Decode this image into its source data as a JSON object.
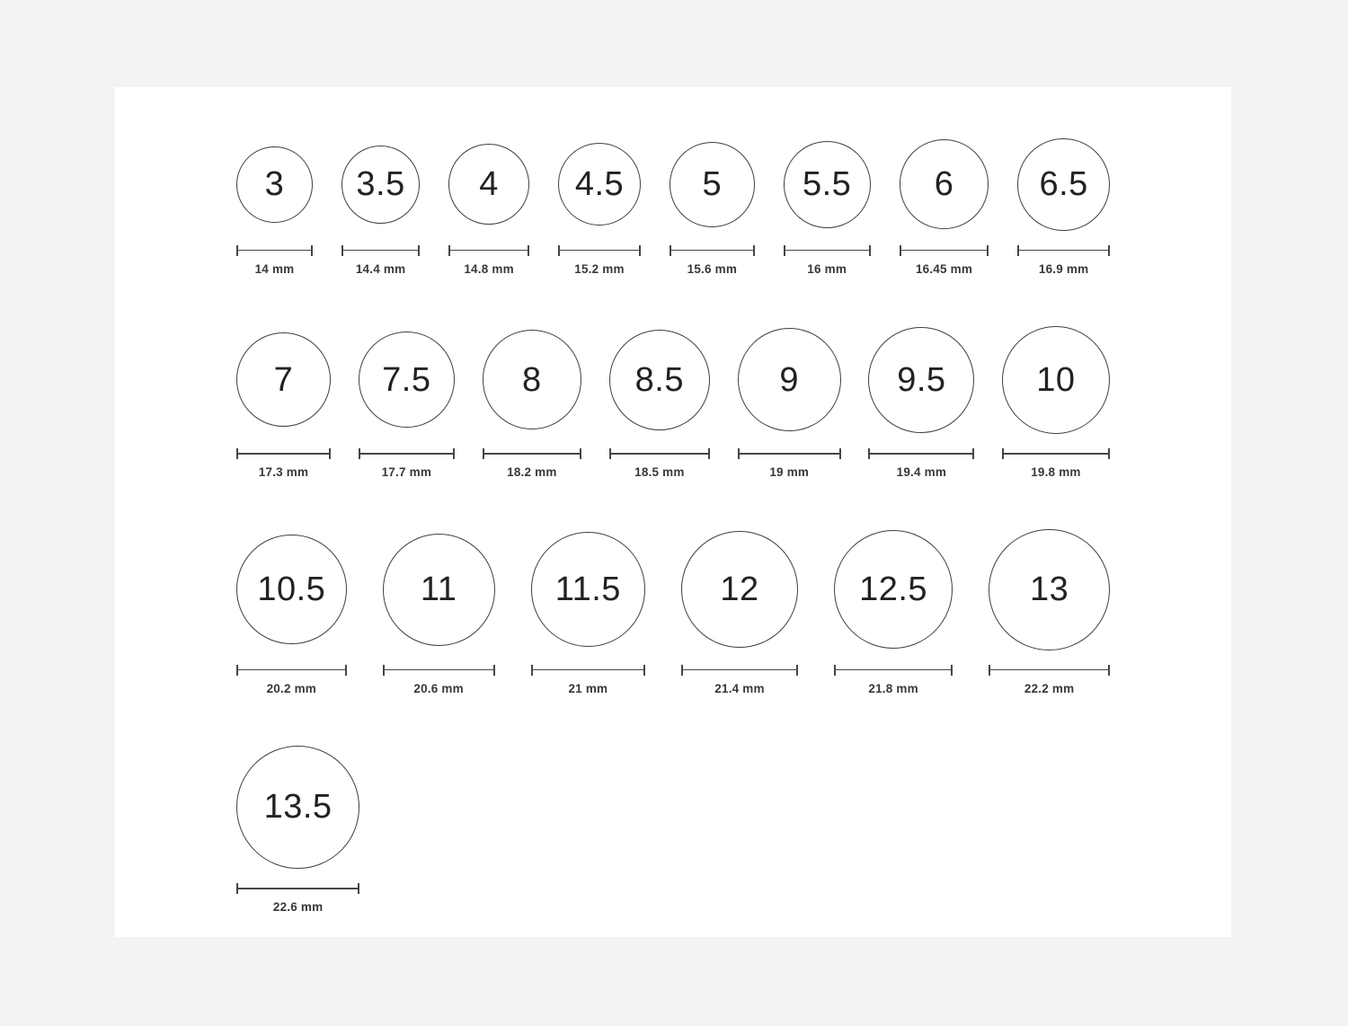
{
  "ring_size_chart": {
    "unit": "mm",
    "rows": [
      {
        "items": [
          {
            "size": "3",
            "diameter_mm": 14,
            "label": "14 mm"
          },
          {
            "size": "3.5",
            "diameter_mm": 14.4,
            "label": "14.4 mm"
          },
          {
            "size": "4",
            "diameter_mm": 14.8,
            "label": "14.8 mm"
          },
          {
            "size": "4.5",
            "diameter_mm": 15.2,
            "label": "15.2 mm"
          },
          {
            "size": "5",
            "diameter_mm": 15.6,
            "label": "15.6 mm"
          },
          {
            "size": "5.5",
            "diameter_mm": 16,
            "label": "16 mm"
          },
          {
            "size": "6",
            "diameter_mm": 16.45,
            "label": "16.45 mm"
          },
          {
            "size": "6.5",
            "diameter_mm": 16.9,
            "label": "16.9 mm"
          }
        ]
      },
      {
        "items": [
          {
            "size": "7",
            "diameter_mm": 17.3,
            "label": "17.3 mm"
          },
          {
            "size": "7.5",
            "diameter_mm": 17.7,
            "label": "17.7 mm"
          },
          {
            "size": "8",
            "diameter_mm": 18.2,
            "label": "18.2 mm"
          },
          {
            "size": "8.5",
            "diameter_mm": 18.5,
            "label": "18.5 mm"
          },
          {
            "size": "9",
            "diameter_mm": 19,
            "label": "19 mm"
          },
          {
            "size": "9.5",
            "diameter_mm": 19.4,
            "label": "19.4 mm"
          },
          {
            "size": "10",
            "diameter_mm": 19.8,
            "label": "19.8 mm"
          }
        ]
      },
      {
        "items": [
          {
            "size": "10.5",
            "diameter_mm": 20.2,
            "label": "20.2 mm"
          },
          {
            "size": "11",
            "diameter_mm": 20.6,
            "label": "20.6 mm"
          },
          {
            "size": "11.5",
            "diameter_mm": 21,
            "label": "21 mm"
          },
          {
            "size": "12",
            "diameter_mm": 21.4,
            "label": "21.4 mm"
          },
          {
            "size": "12.5",
            "diameter_mm": 21.8,
            "label": "21.8 mm"
          },
          {
            "size": "13",
            "diameter_mm": 22.2,
            "label": "22.2 mm"
          }
        ]
      },
      {
        "items": [
          {
            "size": "13.5",
            "diameter_mm": 22.6,
            "label": "22.6 mm"
          }
        ]
      }
    ],
    "colors": {
      "card_background": "#ffffff",
      "page_background": "#f2f3f4",
      "circle_stroke": "#3e3e46",
      "number_text": "#222226",
      "ruler": "#45454c",
      "label_text": "#38383d"
    }
  }
}
